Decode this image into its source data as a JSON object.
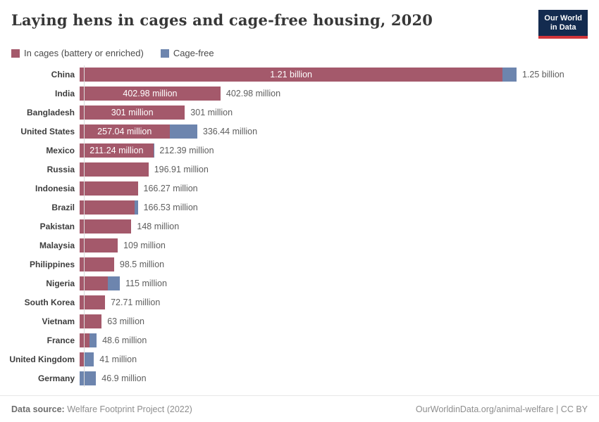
{
  "header": {
    "title": "Laying hens in cages and cage-free housing, 2020",
    "logo": {
      "line1": "Our World",
      "line2": "in Data"
    }
  },
  "legend": [
    {
      "label": "In cages (battery or enriched)",
      "color": "#a4596b"
    },
    {
      "label": "Cage-free",
      "color": "#6d85ae"
    }
  ],
  "chart_data": {
    "type": "bar",
    "orientation": "horizontal",
    "stacked": true,
    "title": "Laying hens in cages and cage-free housing, 2020",
    "unit": "hens (millions)",
    "x_axis_max_millions": 1250,
    "grid": false,
    "legend_position": "top-left",
    "series_names": [
      "In cages (battery or enriched)",
      "Cage-free"
    ],
    "colors": {
      "in_cages": "#a4596b",
      "cage_free": "#6d85ae"
    },
    "rows": [
      {
        "country": "China",
        "in_cages_millions": 1210,
        "cage_free_millions": 40,
        "bar_label": "1.21 billion",
        "total_label": "1.25 billion"
      },
      {
        "country": "India",
        "in_cages_millions": 402.98,
        "cage_free_millions": 0,
        "bar_label": "402.98 million",
        "total_label": "402.98 million"
      },
      {
        "country": "Bangladesh",
        "in_cages_millions": 301,
        "cage_free_millions": 0,
        "bar_label": "301 million",
        "total_label": "301 million"
      },
      {
        "country": "United States",
        "in_cages_millions": 257.04,
        "cage_free_millions": 79.4,
        "bar_label": "257.04 million",
        "total_label": "336.44 million"
      },
      {
        "country": "Mexico",
        "in_cages_millions": 211.24,
        "cage_free_millions": 1.15,
        "bar_label": "211.24 million",
        "total_label": "212.39 million"
      },
      {
        "country": "Russia",
        "in_cages_millions": 196.91,
        "cage_free_millions": 0,
        "bar_label": null,
        "total_label": "196.91 million"
      },
      {
        "country": "Indonesia",
        "in_cages_millions": 166.27,
        "cage_free_millions": 0,
        "bar_label": null,
        "total_label": "166.27 million"
      },
      {
        "country": "Brazil",
        "in_cages_millions": 156.5,
        "cage_free_millions": 10,
        "bar_label": null,
        "total_label": "166.53 million"
      },
      {
        "country": "Pakistan",
        "in_cages_millions": 148,
        "cage_free_millions": 0,
        "bar_label": null,
        "total_label": "148 million"
      },
      {
        "country": "Malaysia",
        "in_cages_millions": 109,
        "cage_free_millions": 0,
        "bar_label": null,
        "total_label": "109 million"
      },
      {
        "country": "Philippines",
        "in_cages_millions": 98.5,
        "cage_free_millions": 0,
        "bar_label": null,
        "total_label": "98.5 million"
      },
      {
        "country": "Nigeria",
        "in_cages_millions": 81,
        "cage_free_millions": 34,
        "bar_label": null,
        "total_label": "115 million"
      },
      {
        "country": "South Korea",
        "in_cages_millions": 72.71,
        "cage_free_millions": 0,
        "bar_label": null,
        "total_label": "72.71 million"
      },
      {
        "country": "Vietnam",
        "in_cages_millions": 63,
        "cage_free_millions": 0,
        "bar_label": null,
        "total_label": "63 million"
      },
      {
        "country": "France",
        "in_cages_millions": 28,
        "cage_free_millions": 20.6,
        "bar_label": null,
        "total_label": "48.6 million"
      },
      {
        "country": "United Kingdom",
        "in_cages_millions": 14,
        "cage_free_millions": 27,
        "bar_label": null,
        "total_label": "41 million"
      },
      {
        "country": "Germany",
        "in_cages_millions": 0,
        "cage_free_millions": 46.9,
        "bar_label": null,
        "total_label": "46.9 million"
      }
    ]
  },
  "footer": {
    "source_prefix": "Data source:",
    "source_text": " Welfare Footprint Project (2022)",
    "link": "OurWorldinData.org/animal-welfare | CC BY"
  }
}
